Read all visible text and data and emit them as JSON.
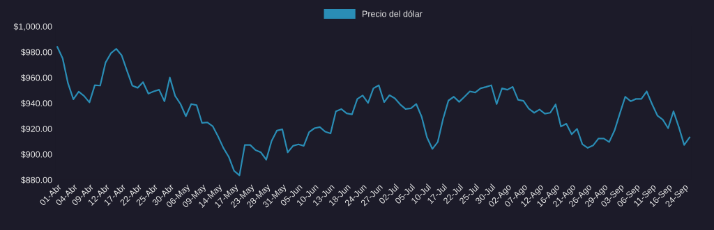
{
  "chart_data": {
    "type": "line",
    "categories": [
      "01-Abr",
      null,
      null,
      "04-Abr",
      null,
      null,
      "09-Abr",
      null,
      null,
      "12-Abr",
      null,
      null,
      "17-Abr",
      null,
      null,
      "22-Abr",
      null,
      null,
      "25-Abr",
      null,
      null,
      "30-Abr",
      null,
      null,
      "06-May",
      null,
      null,
      "09-May",
      null,
      null,
      "14-May",
      null,
      null,
      "17-May",
      null,
      null,
      "23-May",
      null,
      null,
      "28-May",
      null,
      null,
      "31-May",
      null,
      null,
      "05-Jun",
      null,
      null,
      "10-Jun",
      null,
      null,
      "13-Jun",
      null,
      null,
      "18-Jun",
      null,
      null,
      "24-Jun",
      null,
      null,
      "27-Jun",
      null,
      null,
      "02-Jul",
      null,
      null,
      "05-Jul",
      null,
      null,
      "10-Jul",
      null,
      null,
      "17-Jul",
      null,
      null,
      "22-Jul",
      null,
      null,
      "25-Jul",
      null,
      null,
      "30-Jul",
      null,
      null,
      "02-Ago",
      null,
      null,
      "07-Ago",
      null,
      null,
      "12-Ago",
      null,
      null,
      "16-Ago",
      null,
      null,
      "21-Ago",
      null,
      null,
      "26-Ago",
      null,
      null,
      "29-Ago",
      null,
      null,
      "03-Sep",
      null,
      null,
      "06-Sep",
      null,
      null,
      "11-Sep",
      null,
      null,
      "16-Sep",
      null,
      null,
      "24-Sep",
      null
    ],
    "series": [
      {
        "name": "Precio del dólar",
        "color": "#2a8db5",
        "values": [
          984,
          975,
          955.5,
          943,
          949,
          945.6,
          940.6,
          954,
          953.7,
          971.7,
          979,
          982.5,
          977.5,
          965.4,
          953.7,
          952,
          956.4,
          947.4,
          949.2,
          950.5,
          941.5,
          960,
          945.6,
          939.3,
          929.8,
          939.3,
          938.4,
          924.6,
          925,
          922,
          914,
          905,
          898,
          887,
          883.5,
          907.3,
          907.3,
          903.3,
          901.5,
          895.8,
          910.5,
          918.6,
          919.5,
          901.5,
          906.6,
          907.8,
          906.6,
          917.4,
          920.4,
          921.3,
          917.7,
          916.3,
          933.6,
          935.4,
          932,
          931.2,
          943.3,
          946,
          940.2,
          951.6,
          954,
          940.8,
          946.2,
          943.8,
          939,
          935.4,
          936,
          939.3,
          929.4,
          913.2,
          904.2,
          909.6,
          927.6,
          942,
          945,
          941,
          945,
          949.2,
          948.3,
          951.6,
          952.7,
          954,
          939.3,
          951.6,
          950.5,
          952.7,
          942.6,
          941.8,
          935.7,
          932.5,
          935,
          931.8,
          932.5,
          939,
          921.7,
          923.9,
          915.6,
          919.9,
          907.8,
          905,
          906.9,
          912.3,
          912.3,
          909.6,
          918.6,
          932,
          945,
          941.5,
          943.3,
          943.3,
          949.2,
          939.3,
          930.3,
          927.1,
          920.4,
          933.6,
          921.3,
          907.3,
          913.2
        ]
      }
    ],
    "ylim": [
      880,
      1000
    ],
    "yticks": [
      {
        "value": 880,
        "label": "$880.00"
      },
      {
        "value": 900,
        "label": "$900.00"
      },
      {
        "value": 920,
        "label": "$920.00"
      },
      {
        "value": 940,
        "label": "$940.00"
      },
      {
        "value": 960,
        "label": "$960.00"
      },
      {
        "value": 980,
        "label": "$980.00"
      },
      {
        "value": 1000,
        "label": "$1,000.00"
      }
    ],
    "legend": "top",
    "grid": false,
    "marker": "none",
    "line_style": "solid"
  }
}
